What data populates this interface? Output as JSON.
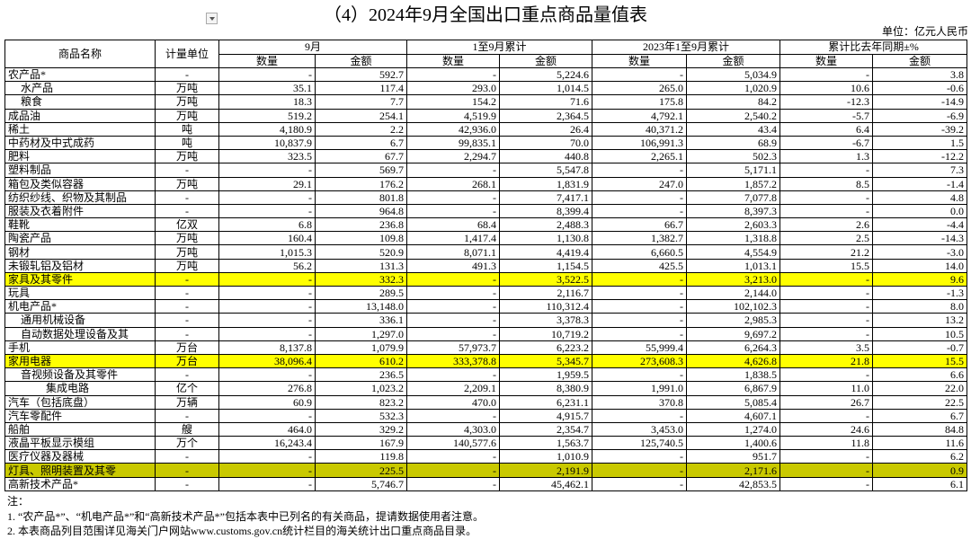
{
  "header": {
    "title": "（4）2024年9月全国出口重点商品量值表",
    "unit": "单位：亿元人民币"
  },
  "table": {
    "group_headers": [
      "商品名称",
      "计量单位",
      "9月",
      "1至9月累计",
      "2023年1至9月累计",
      "累计比去年同期±%"
    ],
    "sub_headers": [
      "数量",
      "金额",
      "数量",
      "金额",
      "数量",
      "金额",
      "数量",
      "金额"
    ],
    "rows": [
      [
        "农产品*",
        "-",
        "-",
        "592.7",
        "-",
        "5,224.6",
        "-",
        "5,034.9",
        "-",
        "3.8"
      ],
      [
        "水产品",
        "万吨",
        "35.1",
        "117.4",
        "293.0",
        "1,014.5",
        "265.0",
        "1,020.9",
        "10.6",
        "-0.6"
      ],
      [
        "粮食",
        "万吨",
        "18.3",
        "7.7",
        "154.2",
        "71.6",
        "175.8",
        "84.2",
        "-12.3",
        "-14.9"
      ],
      [
        "成品油",
        "万吨",
        "519.2",
        "254.1",
        "4,519.9",
        "2,364.5",
        "4,792.1",
        "2,540.2",
        "-5.7",
        "-6.9"
      ],
      [
        "稀土",
        "吨",
        "4,180.9",
        "2.2",
        "42,936.0",
        "26.4",
        "40,371.2",
        "43.4",
        "6.4",
        "-39.2"
      ],
      [
        "中药材及中式成药",
        "吨",
        "10,837.9",
        "6.7",
        "99,835.1",
        "70.0",
        "106,991.3",
        "68.9",
        "-6.7",
        "1.5"
      ],
      [
        "肥料",
        "万吨",
        "323.5",
        "67.7",
        "2,294.7",
        "440.8",
        "2,265.1",
        "502.3",
        "1.3",
        "-12.2"
      ],
      [
        "塑料制品",
        "-",
        "-",
        "569.7",
        "-",
        "5,547.8",
        "-",
        "5,171.1",
        "-",
        "7.3"
      ],
      [
        "箱包及类似容器",
        "万吨",
        "29.1",
        "176.2",
        "268.1",
        "1,831.9",
        "247.0",
        "1,857.2",
        "8.5",
        "-1.4"
      ],
      [
        "纺织纱线、织物及其制品",
        "-",
        "-",
        "801.8",
        "-",
        "7,417.1",
        "-",
        "7,077.8",
        "-",
        "4.8"
      ],
      [
        "服装及衣着附件",
        "-",
        "-",
        "964.8",
        "-",
        "8,399.4",
        "-",
        "8,397.3",
        "-",
        "0.0"
      ],
      [
        "鞋靴",
        "亿双",
        "6.8",
        "236.8",
        "68.4",
        "2,488.3",
        "66.7",
        "2,603.3",
        "2.6",
        "-4.4"
      ],
      [
        "陶瓷产品",
        "万吨",
        "160.4",
        "109.8",
        "1,417.4",
        "1,130.8",
        "1,382.7",
        "1,318.8",
        "2.5",
        "-14.3"
      ],
      [
        "钢材",
        "万吨",
        "1,015.3",
        "520.9",
        "8,071.1",
        "4,419.4",
        "6,660.5",
        "4,554.9",
        "21.2",
        "-3.0"
      ],
      [
        "未锻轧铝及铝材",
        "万吨",
        "56.2",
        "131.3",
        "491.3",
        "1,154.5",
        "425.5",
        "1,013.1",
        "15.5",
        "14.0"
      ],
      [
        "家具及其零件",
        "-",
        "-",
        "332.3",
        "-",
        "3,522.5",
        "-",
        "3,213.0",
        "-",
        "9.6"
      ],
      [
        "玩具",
        "-",
        "-",
        "289.5",
        "-",
        "2,116.7",
        "-",
        "2,144.0",
        "-",
        "-1.3"
      ],
      [
        "机电产品*",
        "-",
        "-",
        "13,148.0",
        "-",
        "110,312.4",
        "-",
        "102,102.3",
        "-",
        "8.0"
      ],
      [
        "通用机械设备",
        "-",
        "-",
        "336.1",
        "-",
        "3,378.3",
        "-",
        "2,985.3",
        "-",
        "13.2"
      ],
      [
        "自动数据处理设备及其",
        "-",
        "-",
        "1,297.0",
        "-",
        "10,719.2",
        "-",
        "9,697.2",
        "-",
        "10.5"
      ],
      [
        "手机",
        "万台",
        "8,137.8",
        "1,079.9",
        "57,973.7",
        "6,223.2",
        "55,999.4",
        "6,264.3",
        "3.5",
        "-0.7"
      ],
      [
        "家用电器",
        "万台",
        "38,096.4",
        "610.2",
        "333,378.8",
        "5,345.7",
        "273,608.3",
        "4,626.8",
        "21.8",
        "15.5"
      ],
      [
        "音视频设备及其零件",
        "-",
        "-",
        "236.5",
        "-",
        "1,959.5",
        "-",
        "1,838.5",
        "-",
        "6.6"
      ],
      [
        "集成电路",
        "亿个",
        "276.8",
        "1,023.2",
        "2,209.1",
        "8,380.9",
        "1,991.0",
        "6,867.9",
        "11.0",
        "22.0"
      ],
      [
        "汽车（包括底盘）",
        "万辆",
        "60.9",
        "823.2",
        "470.0",
        "6,231.1",
        "370.8",
        "5,085.4",
        "26.7",
        "22.5"
      ],
      [
        "汽车零配件",
        "-",
        "-",
        "532.3",
        "-",
        "4,915.7",
        "-",
        "4,607.1",
        "-",
        "6.7"
      ],
      [
        "船舶",
        "艘",
        "464.0",
        "329.2",
        "4,303.0",
        "2,354.7",
        "3,453.0",
        "1,274.0",
        "24.6",
        "84.8"
      ],
      [
        "液晶平板显示模组",
        "万个",
        "16,243.4",
        "167.9",
        "140,577.6",
        "1,563.7",
        "125,740.5",
        "1,400.6",
        "11.8",
        "11.6"
      ],
      [
        "医疗仪器及器械",
        "-",
        "-",
        "119.8",
        "-",
        "1,010.9",
        "-",
        "951.7",
        "-",
        "6.2"
      ],
      [
        "灯具、照明装置及其零",
        "-",
        "-",
        "225.5",
        "-",
        "2,191.9",
        "-",
        "2,171.6",
        "-",
        "0.9"
      ],
      [
        "高新技术产品*",
        "-",
        "-",
        "5,746.7",
        "-",
        "45,462.1",
        "-",
        "42,853.5",
        "-",
        "6.1"
      ]
    ]
  },
  "notes": [
    "注：",
    "1.  “农产品*”、“机电产品*”和“高新技术产品*”包括本表中已列名的有关商品，提请数据使用者注意。",
    "2.  本表商品列目范围详见海关门户网站www.customs.gov.cn统计栏目的海关统计出口重点商品目录。"
  ]
}
